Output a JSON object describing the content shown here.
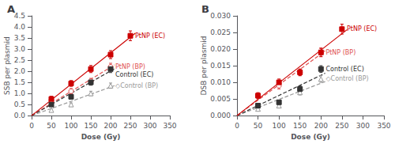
{
  "chart_data": [
    {
      "type": "scatter",
      "title": "A",
      "x_label": "Dose (Gy)",
      "y_label": "SSB per plasmid",
      "xlim": [
        0,
        350
      ],
      "ylim": [
        0.0,
        4.5
      ],
      "xticks": [
        0,
        50,
        100,
        150,
        200,
        250,
        300,
        350
      ],
      "yticks": [
        {
          "value": 0.0,
          "label": "0.0"
        },
        0.5,
        {
          "value": 1.0,
          "label": "1.0"
        },
        1.5,
        {
          "value": 2.0,
          "label": "2.0"
        },
        2.5,
        {
          "value": 3.0,
          "label": "3.0"
        },
        3.5,
        {
          "value": 4.0,
          "label": "4.0"
        },
        4.5
      ],
      "grid": false,
      "series": [
        {
          "name": "◇Control (BP)",
          "color": "#999999",
          "marker": "open_triangle",
          "line_style": "dashed",
          "x": [
            50,
            100,
            150,
            200
          ],
          "values": [
            0.25,
            0.5,
            1.0,
            1.35
          ],
          "errors": [
            0.05,
            0.07,
            0.1,
            0.12
          ],
          "fit": {
            "x": [
              0,
              210
            ],
            "y": [
              0,
              1.351
            ]
          },
          "annotation": {
            "x": 204,
            "y": 1.35
          }
        },
        {
          "name": "PtNP (BP)",
          "color": "#e05050",
          "marker": "open_circle",
          "line_style": "dashed",
          "x": [
            50,
            100,
            150,
            200
          ],
          "values": [
            0.7,
            1.1,
            1.55,
            2.2
          ],
          "errors": [
            0.1,
            0.12,
            0.13,
            0.16
          ],
          "fit": {
            "x": [
              0,
              210
            ],
            "y": [
              0,
              2.289
            ]
          },
          "annotation": {
            "x": 204,
            "y": 2.2
          }
        },
        {
          "name": "Control (EC)",
          "color": "#333333",
          "marker": "square",
          "line_style": "dashed",
          "x": [
            50,
            100,
            150,
            200
          ],
          "values": [
            0.5,
            0.85,
            1.5,
            2.1
          ],
          "errors": [
            0.08,
            0.1,
            0.13,
            0.16
          ],
          "fit": {
            "x": [
              0,
              210
            ],
            "y": [
              0,
              2.114
            ]
          },
          "annotation": {
            "x": 204,
            "y": 2.1
          }
        },
        {
          "name": "PtNP (EC)",
          "color": "#cc0000",
          "marker": "square",
          "line_style": "solid",
          "x": [
            50,
            100,
            150,
            200,
            250
          ],
          "values": [
            0.75,
            1.45,
            2.1,
            2.75,
            3.6
          ],
          "errors": [
            0.12,
            0.13,
            0.16,
            0.18,
            0.22
          ],
          "fit": {
            "x": [
              0,
              262.5
            ],
            "y": [
              0,
              3.7179545454545
            ]
          },
          "annotation": {
            "x": 254,
            "y": 3.6
          }
        }
      ]
    },
    {
      "type": "scatter",
      "title": "B",
      "x_label": "Dose (Gy)",
      "y_label": "DSB per plasmid",
      "xlim": [
        0,
        350
      ],
      "ylim": [
        0.0,
        0.03
      ],
      "xticks": [
        0,
        50,
        100,
        150,
        200,
        250,
        300,
        350
      ],
      "yticks": [
        {
          "value": 0.0,
          "label": "0.000"
        },
        0.005,
        {
          "value": 0.01,
          "label": "0.010"
        },
        0.015,
        {
          "value": 0.02,
          "label": "0.020"
        },
        0.025,
        {
          "value": 0.03,
          "label": "0.030"
        }
      ],
      "grid": false,
      "series": [
        {
          "name": "◇Control (BP)",
          "color": "#999999",
          "marker": "open_triangle",
          "line_style": "dashed",
          "x": [
            50,
            100,
            150,
            200
          ],
          "values": [
            0.002,
            0.003,
            0.007,
            0.011
          ],
          "errors": [
            0.0004,
            0.0005,
            0.0008,
            0.001
          ],
          "fit": {
            "x": [
              0,
              210
            ],
            "y": [
              0,
              0.01022
            ]
          },
          "annotation": {
            "x": 204,
            "y": 0.011
          }
        },
        {
          "name": "Control (EC)",
          "color": "#333333",
          "marker": "square",
          "line_style": "dashed",
          "x": [
            50,
            100,
            150,
            200
          ],
          "values": [
            0.003,
            0.004,
            0.008,
            0.014
          ],
          "errors": [
            0.0005,
            0.0006,
            0.0009,
            0.001
          ],
          "fit": {
            "x": [
              0,
              210
            ],
            "y": [
              0,
              0.01274
            ]
          },
          "annotation": {
            "x": 204,
            "y": 0.014
          }
        },
        {
          "name": "PtNP (BP)",
          "color": "#e05050",
          "marker": "open_circle",
          "line_style": "dashed",
          "x": [
            50,
            100,
            150,
            200
          ],
          "values": [
            0.006,
            0.009,
            0.013,
            0.019
          ],
          "errors": [
            0.0008,
            0.001,
            0.001,
            0.0012
          ],
          "fit": {
            "x": [
              0,
              210
            ],
            "y": [
              0,
              0.01946
            ]
          },
          "annotation": {
            "x": 204,
            "y": 0.019
          }
        },
        {
          "name": "PtNP (EC)",
          "color": "#cc0000",
          "marker": "square",
          "line_style": "solid",
          "x": [
            50,
            100,
            150,
            200,
            250
          ],
          "values": [
            0.006,
            0.01,
            0.013,
            0.019,
            0.026
          ],
          "errors": [
            0.0009,
            0.001,
            0.001,
            0.0013,
            0.0015
          ],
          "fit": {
            "x": [
              0,
              262.5
            ],
            "y": [
              0,
              0.0258681818182
            ]
          },
          "annotation": {
            "x": 254,
            "y": 0.026
          }
        }
      ]
    }
  ]
}
